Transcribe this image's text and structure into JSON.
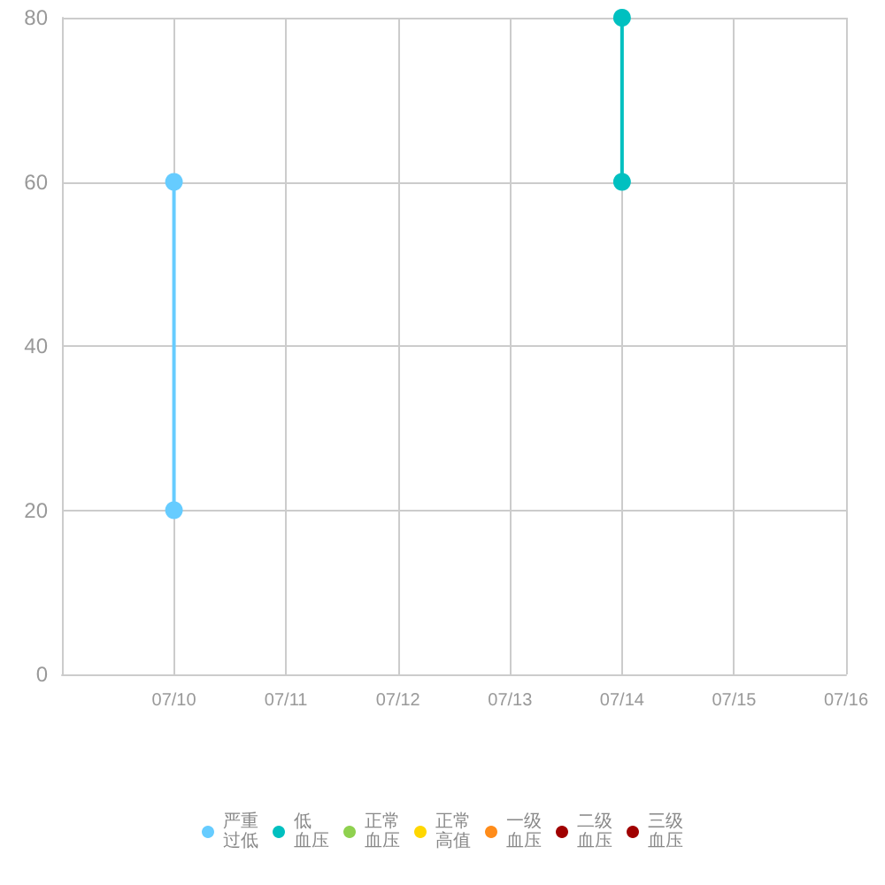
{
  "chart_data": {
    "type": "line",
    "categories": [
      null,
      "07/10",
      "07/11",
      "07/12",
      "07/13",
      "07/14",
      "07/15",
      "07/16"
    ],
    "series": [
      {
        "name": "严重过低",
        "color": "#66ccff",
        "x": [
          "07/10",
          "07/10"
        ],
        "values": [
          20,
          60
        ]
      },
      {
        "name": "低血压",
        "color": "#00c0c0",
        "x": [
          "07/14",
          "07/14"
        ],
        "values": [
          60,
          80
        ]
      },
      {
        "name": "正常血压",
        "color": "#8fd14f",
        "values": [
          null,
          null,
          null,
          null,
          null,
          null,
          null,
          null
        ]
      },
      {
        "name": "正常高值",
        "color": "#ffd700",
        "values": [
          null,
          null,
          null,
          null,
          null,
          null,
          null,
          null
        ]
      },
      {
        "name": "一级血压",
        "color": "#ff8c1a",
        "values": [
          null,
          null,
          null,
          null,
          null,
          null,
          null,
          null
        ]
      },
      {
        "name": "二级血压",
        "color": "#a00000",
        "values": [
          null,
          null,
          null,
          null,
          null,
          null,
          null,
          null
        ]
      },
      {
        "name": "三级血压",
        "color": "#a00000",
        "values": [
          null,
          null,
          null,
          null,
          null,
          null,
          null,
          null
        ]
      }
    ],
    "ylim": [
      0,
      80
    ],
    "yticks": [
      0,
      20,
      40,
      60,
      80
    ],
    "grid": true,
    "legend": "bottom",
    "marker": "circle",
    "line_style": "solid"
  }
}
